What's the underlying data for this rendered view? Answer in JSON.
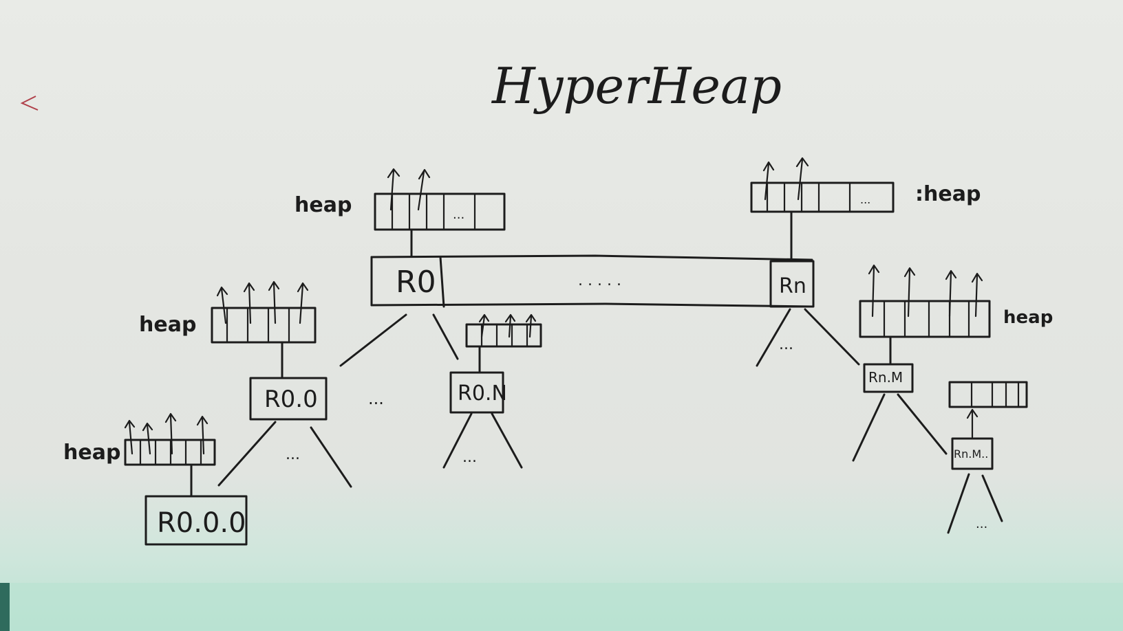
{
  "title": "HyperHeap",
  "heap_label": "heap",
  "heap_label_colon": ":heap",
  "ellipsis": "...",
  "ellipsis_long": ". . . . .",
  "nodes": {
    "r0": "R0",
    "rn": "Rn",
    "r0_0": "R0.0",
    "r0_n": "R0.N",
    "rn_m": "Rn.M",
    "rn_m_child": "Rn.M..",
    "r0_0_0": "R0.0.0"
  },
  "colors": {
    "board": "#e4e6e2",
    "ink": "#1c1c1c",
    "tray": "#b9e2d2"
  }
}
